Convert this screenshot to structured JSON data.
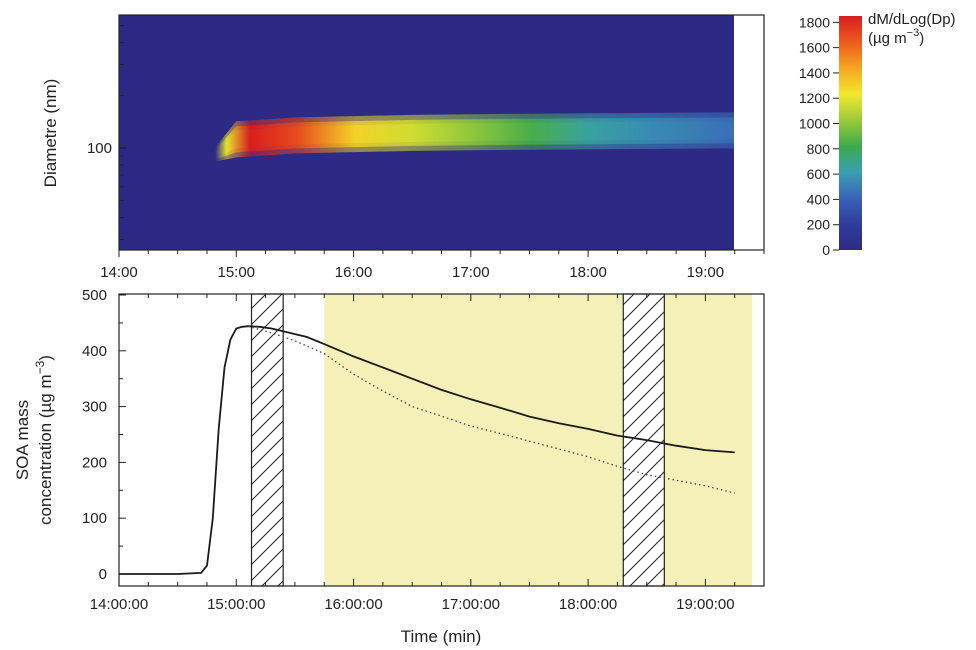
{
  "chart_data": [
    {
      "type": "heatmap",
      "ylabel": "Diametre (nm)",
      "y_tick_labels": [
        "100"
      ],
      "x_tick_labels": [
        "14:00",
        "15:00",
        "16:00",
        "17:00",
        "18:00",
        "19:00"
      ],
      "x_range_hours": [
        14.0,
        19.5
      ],
      "data_end_hour": 19.25,
      "y_scale": "log",
      "grid": false,
      "mode_diameter_nm": [
        {
          "t": 14.82,
          "d": 92
        },
        {
          "t": 15.0,
          "d": 112
        },
        {
          "t": 15.5,
          "d": 118
        },
        {
          "t": 16.5,
          "d": 122
        },
        {
          "t": 17.5,
          "d": 124
        },
        {
          "t": 19.25,
          "d": 126
        }
      ],
      "peak_intensity": [
        {
          "t": 14.8,
          "v": 0
        },
        {
          "t": 14.9,
          "v": 1200
        },
        {
          "t": 15.1,
          "v": 1850
        },
        {
          "t": 15.5,
          "v": 1700
        },
        {
          "t": 16.0,
          "v": 1300
        },
        {
          "t": 16.5,
          "v": 1150
        },
        {
          "t": 17.0,
          "v": 1000
        },
        {
          "t": 17.5,
          "v": 850
        },
        {
          "t": 18.0,
          "v": 650
        },
        {
          "t": 18.5,
          "v": 550
        },
        {
          "t": 19.25,
          "v": 450
        }
      ],
      "colorbar": {
        "label_line1": "dM/dLog(Dp)",
        "label_line2": "(µg m",
        "label_exp": "−3",
        "label_close": ")",
        "min": 0,
        "max": 1850,
        "ticks": [
          "0",
          "200",
          "400",
          "600",
          "800",
          "1000",
          "1200",
          "1400",
          "1600",
          "1800"
        ],
        "colors": [
          "#2d2a86",
          "#2f3d9a",
          "#3a63b8",
          "#39a0b0",
          "#3caa4a",
          "#9ccb3a",
          "#f2e82a",
          "#f5a623",
          "#ee5a1e",
          "#d91e1e"
        ]
      },
      "background_color": "#2d2a86"
    },
    {
      "type": "line",
      "ylabel_line1": "SOA mass",
      "ylabel_line2": "concentration (µg m",
      "ylabel_exp": "−3",
      "ylabel_close": ")",
      "xlabel": "Time (min)",
      "x_tick_labels": [
        "14:00:00",
        "15:00:00",
        "16:00:00",
        "17:00:00",
        "18:00:00",
        "19:00:00"
      ],
      "y_tick_labels": [
        "0",
        "100",
        "200",
        "300",
        "400",
        "500"
      ],
      "ylim": [
        0,
        500
      ],
      "x_range_hours": [
        14.0,
        19.5
      ],
      "grid": false,
      "shaded_region": {
        "start": 15.75,
        "end": 19.4,
        "color": "#f5f0b8"
      },
      "hatched_regions": [
        {
          "start": 15.13,
          "end": 15.4
        },
        {
          "start": 18.3,
          "end": 18.65
        }
      ],
      "series": [
        {
          "style": "solid",
          "x": [
            14.0,
            14.5,
            14.7,
            14.75,
            14.8,
            14.85,
            14.9,
            14.95,
            15.0,
            15.05,
            15.1,
            15.2,
            15.3,
            15.4,
            15.5,
            15.6,
            15.75,
            16.0,
            16.25,
            16.5,
            16.75,
            17.0,
            17.25,
            17.5,
            17.75,
            18.0,
            18.25,
            18.5,
            18.75,
            19.0,
            19.25
          ],
          "y": [
            0,
            0,
            2,
            15,
            100,
            260,
            370,
            420,
            440,
            443,
            444,
            443,
            440,
            435,
            430,
            425,
            412,
            390,
            370,
            350,
            330,
            313,
            298,
            282,
            270,
            260,
            248,
            240,
            230,
            222,
            218
          ]
        },
        {
          "style": "dotted",
          "x": [
            15.1,
            15.3,
            15.5,
            15.75,
            16.0,
            16.25,
            16.5,
            16.75,
            17.0,
            17.25,
            17.5,
            17.75,
            18.0,
            18.25,
            18.5,
            18.75,
            19.0,
            19.25
          ],
          "y": [
            444,
            432,
            418,
            395,
            358,
            328,
            300,
            283,
            265,
            252,
            238,
            224,
            210,
            193,
            178,
            168,
            158,
            145
          ]
        }
      ]
    }
  ]
}
